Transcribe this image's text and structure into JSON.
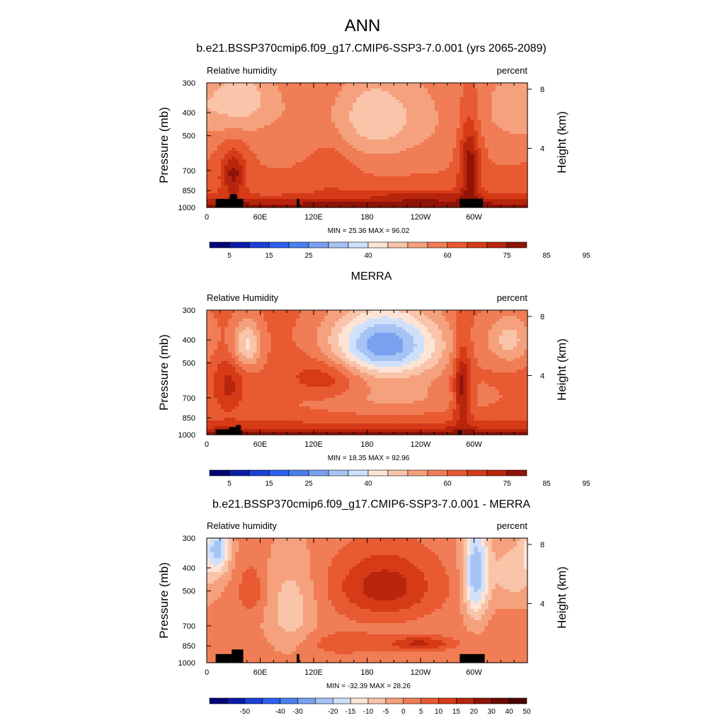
{
  "page": {
    "title": "ANN"
  },
  "chart_data": [
    {
      "type": "heatmap",
      "title": "b.e21.BSSP370cmip6.f09_g17.CMIP6-SSP3-7.0.001 (yrs 2065-2089)",
      "left_label": "Relative humidity",
      "right_label": "percent",
      "ylabel": "Pressure (mb)",
      "y2label": "Height (km)",
      "x_ticks": [
        "0",
        "60E",
        "120E",
        "180",
        "120W",
        "60W"
      ],
      "x_tick_lon": [
        0,
        60,
        120,
        180,
        240,
        300
      ],
      "xlim": [
        0,
        360
      ],
      "y_ticks": [
        300,
        400,
        500,
        700,
        850,
        1000
      ],
      "ylim": [
        1000,
        300
      ],
      "y2_ticks": [
        8,
        4
      ],
      "stats": "MIN =  25.36  MAX =  96.02",
      "min": 25.36,
      "max": 96.02,
      "colorbar": {
        "levels": [
          5,
          10,
          15,
          20,
          25,
          30,
          35,
          40,
          45,
          50,
          55,
          60,
          65,
          70,
          75,
          80,
          85,
          90,
          95
        ],
        "labels": [
          "5",
          "15",
          "25",
          "40",
          "60",
          "75",
          "85",
          "95"
        ],
        "label_levels": [
          5,
          15,
          25,
          40,
          60,
          75,
          85,
          95
        ]
      },
      "topography": [
        {
          "lon0": 10,
          "lon1": 26,
          "p": 920
        },
        {
          "lon0": 26,
          "lon1": 34,
          "p": 880
        },
        {
          "lon0": 34,
          "lon1": 41,
          "p": 920
        },
        {
          "lon0": 101,
          "lon1": 104,
          "p": 920
        },
        {
          "lon0": 284,
          "lon1": 310,
          "p": 920
        }
      ],
      "field": {
        "base": 60,
        "surface": {
          "amp": 26,
          "scale_mb": 70
        },
        "features": [
          {
            "lon": 40,
            "p": 350,
            "dl": 25,
            "dp": 90,
            "amp": -12
          },
          {
            "lon": 180,
            "p": 420,
            "dl": 55,
            "dp": 130,
            "amp": -14
          },
          {
            "lon": 345,
            "p": 380,
            "dl": 25,
            "dp": 100,
            "amp": -8
          },
          {
            "lon": 295,
            "p": 680,
            "dl": 8,
            "dp": 200,
            "amp": 18
          },
          {
            "lon": 30,
            "p": 720,
            "dl": 10,
            "dp": 110,
            "amp": 16
          },
          {
            "lon": 140,
            "p": 500,
            "dl": 20,
            "dp": 260,
            "amp": 6
          },
          {
            "lon": 240,
            "p": 900,
            "dl": 40,
            "dp": 40,
            "amp": 8
          }
        ]
      }
    },
    {
      "type": "heatmap",
      "title": "MERRA",
      "left_label": "Relative Humidity",
      "right_label": "percent",
      "ylabel": "Pressure (mb)",
      "y2label": "Height (km)",
      "x_ticks": [
        "0",
        "60E",
        "120E",
        "180",
        "120W",
        "60W"
      ],
      "x_tick_lon": [
        0,
        60,
        120,
        180,
        240,
        300
      ],
      "xlim": [
        0,
        360
      ],
      "y_ticks": [
        300,
        400,
        500,
        700,
        850,
        1000
      ],
      "ylim": [
        1000,
        300
      ],
      "y2_ticks": [
        8,
        4
      ],
      "stats": "MIN =  18.35  MAX =  92.96",
      "min": 18.35,
      "max": 92.96,
      "colorbar": {
        "levels": [
          5,
          10,
          15,
          20,
          25,
          30,
          35,
          40,
          45,
          50,
          55,
          60,
          65,
          70,
          75,
          80,
          85,
          90,
          95
        ],
        "labels": [
          "5",
          "15",
          "25",
          "40",
          "60",
          "75",
          "85",
          "95"
        ],
        "label_levels": [
          5,
          15,
          25,
          40,
          60,
          75,
          85,
          95
        ]
      },
      "topography": [
        {
          "lon0": 10,
          "lon1": 25,
          "p": 950
        },
        {
          "lon0": 25,
          "lon1": 33,
          "p": 930
        },
        {
          "lon0": 33,
          "lon1": 38,
          "p": 910
        },
        {
          "lon0": 38,
          "lon1": 40,
          "p": 960
        },
        {
          "lon0": 282,
          "lon1": 286,
          "p": 960
        }
      ],
      "field": {
        "base": 62,
        "surface": {
          "amp": 24,
          "scale_mb": 60
        },
        "features": [
          {
            "lon": 45,
            "p": 420,
            "dl": 12,
            "dp": 70,
            "amp": -18
          },
          {
            "lon": 200,
            "p": 420,
            "dl": 45,
            "dp": 100,
            "amp": -36
          },
          {
            "lon": 340,
            "p": 400,
            "dl": 18,
            "dp": 70,
            "amp": -14
          },
          {
            "lon": 287,
            "p": 640,
            "dl": 7,
            "dp": 180,
            "amp": 18
          },
          {
            "lon": 135,
            "p": 580,
            "dl": 30,
            "dp": 90,
            "amp": 10
          },
          {
            "lon": 25,
            "p": 620,
            "dl": 12,
            "dp": 110,
            "amp": 10
          },
          {
            "lon": 200,
            "p": 700,
            "dl": 80,
            "dp": 90,
            "amp": -8
          }
        ]
      }
    },
    {
      "type": "heatmap",
      "title": "b.e21.BSSP370cmip6.f09_g17.CMIP6-SSP3-7.0.001 - MERRA",
      "left_label": "Relative humidity",
      "right_label": "percent",
      "ylabel": "Pressure (mb)",
      "y2label": "Height (km)",
      "x_ticks": [
        "0",
        "60E",
        "120E",
        "180",
        "120W",
        "60W"
      ],
      "x_tick_lon": [
        0,
        60,
        120,
        180,
        240,
        300
      ],
      "xlim": [
        0,
        360
      ],
      "y_ticks": [
        300,
        400,
        500,
        700,
        850,
        1000
      ],
      "ylim": [
        1000,
        300
      ],
      "y2_ticks": [
        8,
        4
      ],
      "stats": "MIN = -32.39  MAX =  28.26",
      "min": -32.39,
      "max": 28.26,
      "colorbar": {
        "levels": [
          -60,
          -50,
          -45,
          -40,
          -30,
          -25,
          -20,
          -15,
          -10,
          -5,
          0,
          5,
          10,
          15,
          20,
          30,
          40,
          50,
          60
        ],
        "labels": [
          "-50",
          "-40",
          "-30",
          "-20",
          "-15",
          "-10",
          "-5",
          "0",
          "5",
          "10",
          "15",
          "20",
          "30",
          "40",
          "50"
        ],
        "label_levels": [
          -50,
          -40,
          -30,
          -20,
          -15,
          -10,
          -5,
          0,
          5,
          10,
          15,
          20,
          30,
          40,
          50
        ]
      },
      "topography": [
        {
          "lon0": 10,
          "lon1": 28,
          "p": 920
        },
        {
          "lon0": 28,
          "lon1": 41,
          "p": 880
        },
        {
          "lon0": 101,
          "lon1": 104,
          "p": 920
        },
        {
          "lon0": 284,
          "lon1": 312,
          "p": 920
        }
      ],
      "field": {
        "base": 2,
        "surface": {
          "amp": 0,
          "scale_mb": 60
        },
        "features": [
          {
            "lon": 200,
            "p": 480,
            "dl": 40,
            "dp": 110,
            "amp": 16
          },
          {
            "lon": 302,
            "p": 420,
            "dl": 10,
            "dp": 150,
            "amp": -26
          },
          {
            "lon": 12,
            "p": 330,
            "dl": 10,
            "dp": 60,
            "amp": -22
          },
          {
            "lon": 95,
            "p": 600,
            "dl": 20,
            "dp": 200,
            "amp": -10
          },
          {
            "lon": 50,
            "p": 500,
            "dl": 10,
            "dp": 80,
            "amp": 8
          },
          {
            "lon": 240,
            "p": 830,
            "dl": 25,
            "dp": 40,
            "amp": 14
          },
          {
            "lon": 345,
            "p": 420,
            "dl": 20,
            "dp": 100,
            "amp": -10
          },
          {
            "lon": 150,
            "p": 830,
            "dl": 35,
            "dp": 70,
            "amp": 6
          }
        ]
      }
    }
  ],
  "palettes": {
    "abs": [
      "#020575",
      "#0b1ba7",
      "#1a3fd6",
      "#2d5ff0",
      "#4a7ff0",
      "#7aa0f0",
      "#a6c3f5",
      "#cfe0fa",
      "#fde4d6",
      "#f9c4a9",
      "#f5a17d",
      "#f07d55",
      "#e85a32",
      "#d63a17",
      "#b8250d",
      "#8f1306"
    ],
    "diff": [
      "#020575",
      "#0b1ba7",
      "#1a3fd6",
      "#2d5ff0",
      "#4a7ff0",
      "#7aa0f0",
      "#a6c3f5",
      "#cfe0fa",
      "#fde4d6",
      "#f9c4a9",
      "#f5a17d",
      "#f07d55",
      "#e85a32",
      "#d63a17",
      "#b8250d",
      "#8f1306",
      "#6b0a03",
      "#4a0501"
    ]
  }
}
